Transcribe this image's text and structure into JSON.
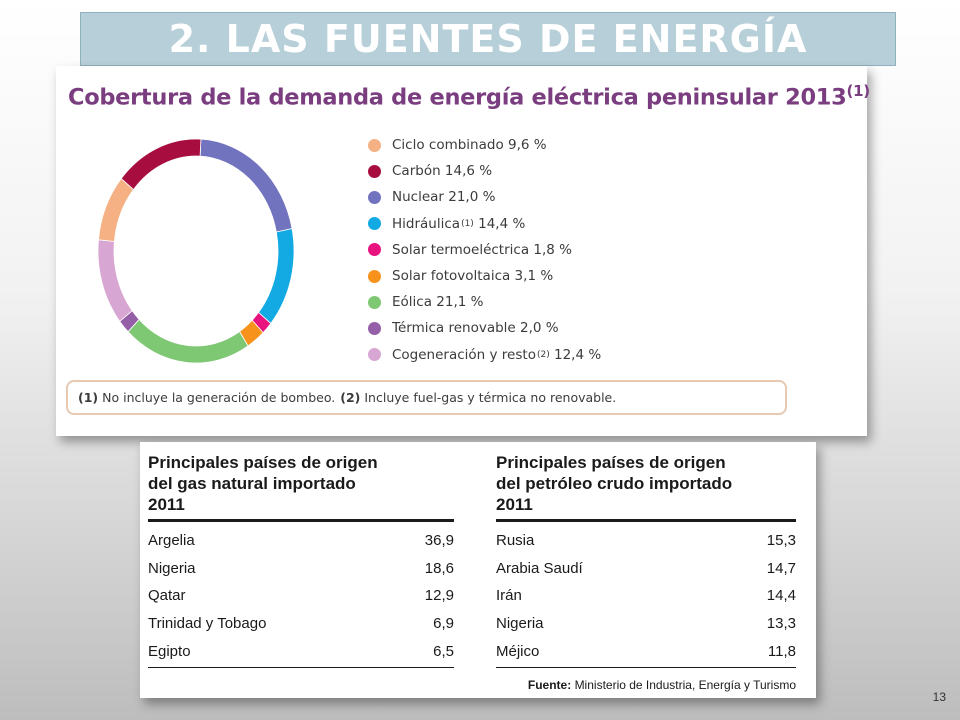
{
  "slide": {
    "title": "2. LAS FUENTES DE ENERGÍA",
    "page_number": "13"
  },
  "chart": {
    "title": "Cobertura de la demanda de energía eléctrica peninsular 2013",
    "title_note": "(1)",
    "legend": [
      {
        "label": "Ciclo combinado 9,6 %",
        "sup": "",
        "rest": "",
        "color": "#f5b183"
      },
      {
        "label": "Carbón 14,6 %",
        "sup": "",
        "rest": "",
        "color": "#a80d3f"
      },
      {
        "label": "Nuclear 21,0 %",
        "sup": "",
        "rest": "",
        "color": "#7173bf"
      },
      {
        "label": "Hidráulica",
        "sup": "(1)",
        "rest": " 14,4 %",
        "color": "#13a9e3"
      },
      {
        "label": "Solar termoeléctrica 1,8 %",
        "sup": "",
        "rest": "",
        "color": "#e8137f"
      },
      {
        "label": "Solar fotovoltaica 3,1 %",
        "sup": "",
        "rest": "",
        "color": "#f7931c"
      },
      {
        "label": "Eólica 21,1 %",
        "sup": "",
        "rest": "",
        "color": "#7fc873"
      },
      {
        "label": "Térmica renovable 2,0 %",
        "sup": "",
        "rest": "",
        "color": "#955fa7"
      },
      {
        "label": "Cogeneración y resto",
        "sup": "(2)",
        "rest": " 12,4 %",
        "color": "#d7a6d2"
      }
    ],
    "footnote": {
      "n1": "(1)",
      "t1": "No incluye la generación de bombeo.",
      "n2": "(2)",
      "t2": "Incluye fuel-gas y térmica no renovable."
    }
  },
  "chart_data": {
    "type": "pie",
    "categories": [
      "Nuclear",
      "Hidráulica",
      "Solar termoeléctrica",
      "Solar fotovoltaica",
      "Eólica",
      "Térmica renovable",
      "Cogeneración y resto",
      "Ciclo combinado",
      "Carbón"
    ],
    "values": [
      21.0,
      14.4,
      1.8,
      3.1,
      21.1,
      2.0,
      12.4,
      9.6,
      14.6
    ],
    "colors": [
      "#7173bf",
      "#13a9e3",
      "#e8137f",
      "#f7931c",
      "#7fc873",
      "#955fa7",
      "#d7a6d2",
      "#f5b183",
      "#a80d3f"
    ],
    "title": "Cobertura de la demanda de energía eléctrica peninsular 2013"
  },
  "gas_table": {
    "title_lines": [
      "Principales países de origen",
      "del gas natural importado",
      "2011"
    ],
    "rows": [
      {
        "country": "Argelia",
        "value": "36,9"
      },
      {
        "country": "Nigeria",
        "value": "18,6"
      },
      {
        "country": "Qatar",
        "value": "12,9"
      },
      {
        "country": "Trinidad y Tobago",
        "value": "6,9"
      },
      {
        "country": "Egipto",
        "value": "6,5"
      }
    ]
  },
  "oil_table": {
    "title_lines": [
      "Principales países de origen",
      "del petróleo crudo importado",
      "2011"
    ],
    "rows": [
      {
        "country": "Rusia",
        "value": "15,3"
      },
      {
        "country": "Arabia Saudí",
        "value": "14,7"
      },
      {
        "country": "Irán",
        "value": "14,4"
      },
      {
        "country": "Nigeria",
        "value": "13,3"
      },
      {
        "country": "Méjico",
        "value": "11,8"
      }
    ]
  },
  "source": {
    "label": "Fuente:",
    "text": "Ministerio de Industria, Energía y Turismo"
  }
}
